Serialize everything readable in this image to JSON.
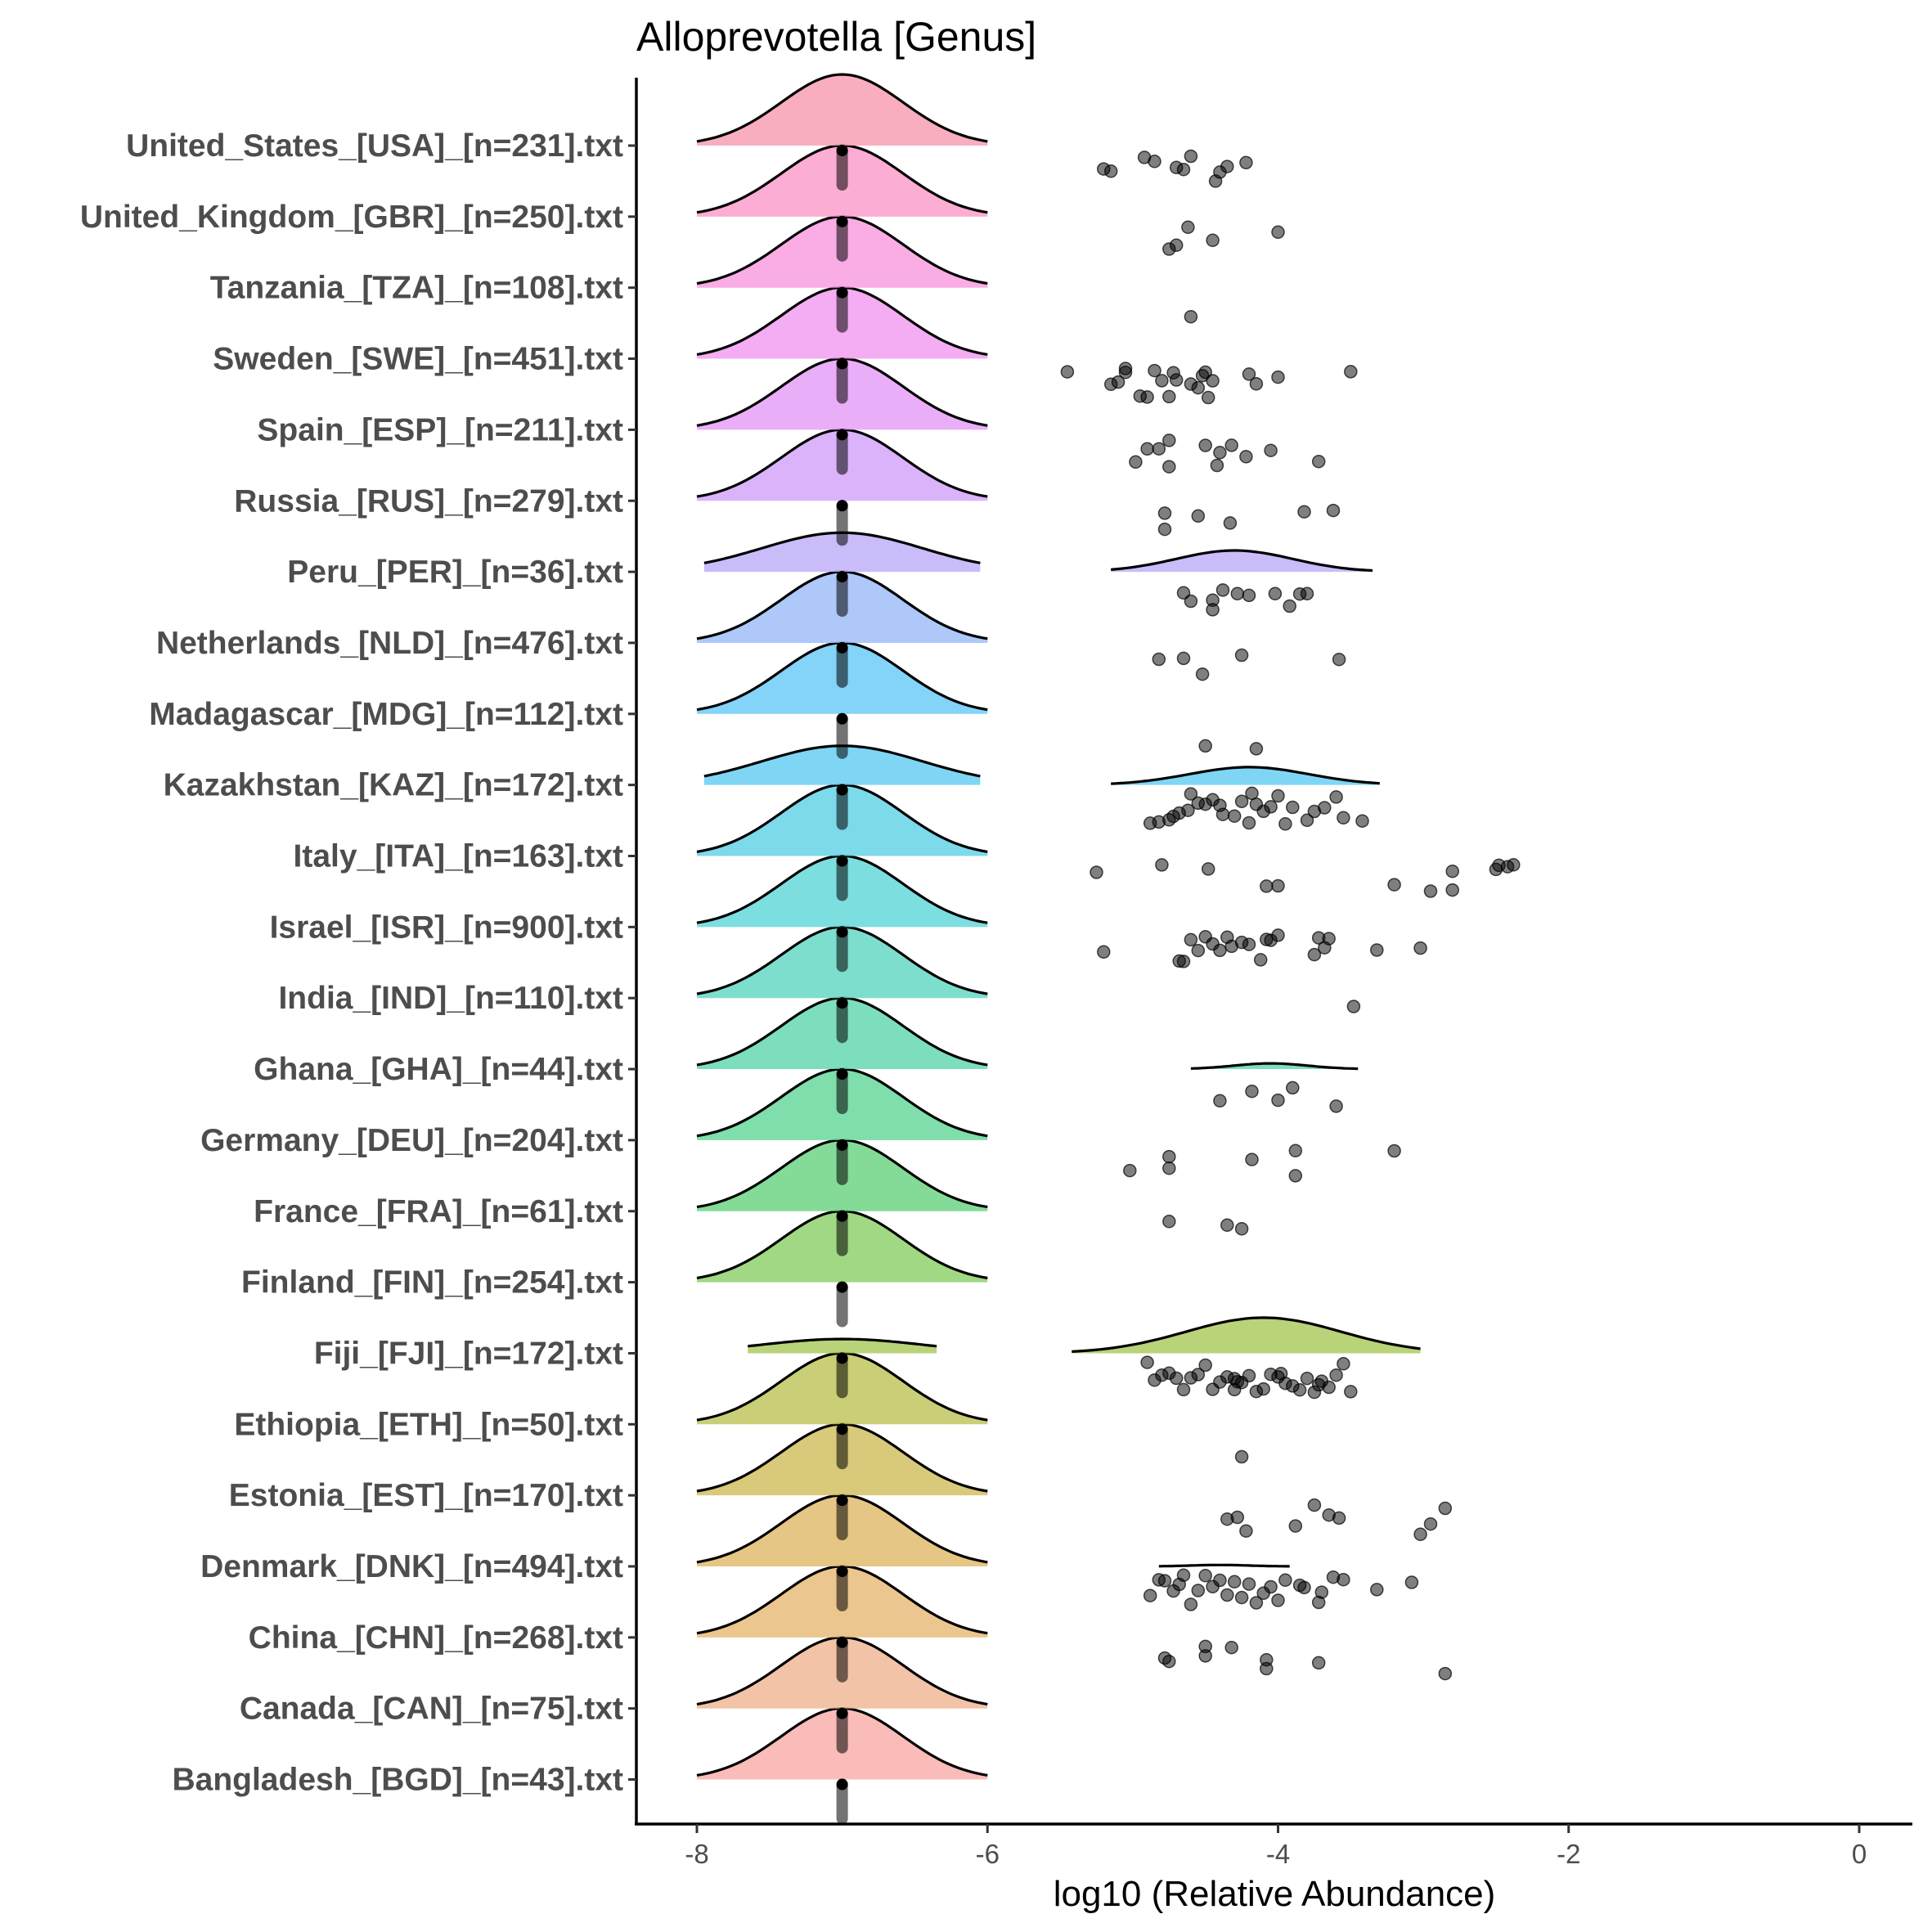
{
  "chart_data": {
    "type": "ridgeline+jitter",
    "title": "Alloprevotella [Genus]",
    "xlabel": "log10 (Relative Abundance)",
    "ylabel": "",
    "xlim": [
      -8.4,
      0.4
    ],
    "xticks": [
      -8,
      -6,
      -4,
      -2,
      0
    ],
    "xtick_labels": [
      "-8",
      "-6",
      "-4",
      "-2",
      "0"
    ],
    "zero_value": -7,
    "grid": false,
    "legend": "none",
    "line_color": "#000000",
    "point_color": "#000000",
    "point_alpha": 0.5,
    "categories": [
      {
        "label": "United_States_[USA]_[n=231].txt",
        "color": "#F8A0B4",
        "zero_ridge": true,
        "ridge": null,
        "points": [
          -5.2,
          -5.15,
          -4.92,
          -4.85,
          -4.7,
          -4.65,
          -4.6,
          -4.43,
          -4.4,
          -4.35,
          -4.22
        ]
      },
      {
        "label": "United_Kingdom_[GBR]_[n=250].txt",
        "color": "#FB9FCB",
        "zero_ridge": true,
        "ridge": null,
        "points": [
          -4.75,
          -4.7,
          -4.62,
          -4.45,
          -4.0
        ]
      },
      {
        "label": "Tanzania_[TZA]_[n=108].txt",
        "color": "#F99EE0",
        "zero_ridge": true,
        "ridge": null,
        "points": [
          -4.6
        ]
      },
      {
        "label": "Sweden_[SWE]_[n=451].txt",
        "color": "#F29DF0",
        "zero_ridge": true,
        "ridge": null,
        "points": [
          -5.45,
          -5.15,
          -5.1,
          -5.05,
          -5.05,
          -4.95,
          -4.9,
          -4.85,
          -4.8,
          -4.75,
          -4.72,
          -4.7,
          -4.6,
          -4.55,
          -4.52,
          -4.5,
          -4.48,
          -4.45,
          -4.2,
          -4.15,
          -4.0,
          -3.5
        ]
      },
      {
        "label": "Spain_[ESP]_[n=211].txt",
        "color": "#E6A0F8",
        "zero_ridge": true,
        "ridge": null,
        "points": [
          -4.98,
          -4.9,
          -4.82,
          -4.75,
          -4.75,
          -4.5,
          -4.42,
          -4.4,
          -4.32,
          -4.22,
          -4.05,
          -3.72
        ]
      },
      {
        "label": "Russia_[RUS]_[n=279].txt",
        "color": "#D5A6FA",
        "zero_ridge": true,
        "ridge": null,
        "points": [
          -4.78,
          -4.78,
          -4.55,
          -4.33,
          -3.82,
          -3.62
        ]
      },
      {
        "label": "Peru_[PER]_[n=36].txt",
        "color": "#C0B0F8",
        "zero_ridge": true,
        "ridge": {
          "from": -5.15,
          "to": -3.35,
          "peak": -4.3,
          "height": 0.3
        },
        "points": [
          -4.65,
          -4.6,
          -4.45,
          -4.45,
          -4.38,
          -4.28,
          -4.2,
          -4.02,
          -3.92,
          -3.85,
          -3.8
        ]
      },
      {
        "label": "Netherlands_[NLD]_[n=476].txt",
        "color": "#9FBEF8",
        "zero_ridge": true,
        "ridge": null,
        "points": [
          -4.82,
          -4.65,
          -4.52,
          -4.25,
          -3.58
        ]
      },
      {
        "label": "Madagascar_[MDG]_[n=112].txt",
        "color": "#6ECBF8",
        "zero_ridge": true,
        "ridge": null,
        "points": [
          -4.5,
          -4.15
        ]
      },
      {
        "label": "Kazakhstan_[KAZ]_[n=172].txt",
        "color": "#68CFF2",
        "zero_ridge": true,
        "ridge": {
          "from": -5.15,
          "to": -3.3,
          "peak": -4.2,
          "height": 0.25
        },
        "points": [
          -4.88,
          -4.82,
          -4.75,
          -4.72,
          -4.68,
          -4.62,
          -4.6,
          -4.55,
          -4.5,
          -4.45,
          -4.4,
          -4.38,
          -4.3,
          -4.25,
          -4.2,
          -4.18,
          -4.15,
          -4.1,
          -4.05,
          -4.0,
          -3.95,
          -3.9,
          -3.8,
          -3.75,
          -3.68,
          -3.6,
          -3.55,
          -3.42
        ]
      },
      {
        "label": "Italy_[ITA]_[n=163].txt",
        "color": "#66D3E6",
        "zero_ridge": true,
        "ridge": null,
        "points": [
          -5.25,
          -4.8,
          -4.48,
          -4.08,
          -4.0,
          -3.2,
          -2.95,
          -2.8,
          -2.8,
          -2.5,
          -2.48,
          -2.42,
          -2.38
        ]
      },
      {
        "label": "Israel_[ISR]_[n=900].txt",
        "color": "#66D8DA",
        "zero_ridge": true,
        "ridge": null,
        "points": [
          -5.2,
          -4.68,
          -4.65,
          -4.6,
          -4.55,
          -4.5,
          -4.45,
          -4.4,
          -4.35,
          -4.32,
          -4.25,
          -4.2,
          -4.12,
          -4.08,
          -4.05,
          -4.0,
          -3.75,
          -3.72,
          -3.68,
          -3.65,
          -3.32,
          -3.02
        ]
      },
      {
        "label": "India_[IND]_[n=110].txt",
        "color": "#66D8C6",
        "zero_ridge": true,
        "ridge": null,
        "points": [
          -3.48
        ]
      },
      {
        "label": "Ghana_[GHA]_[n=44].txt",
        "color": "#66D8B2",
        "zero_ridge": true,
        "ridge": {
          "from": -4.6,
          "to": -3.45,
          "peak": -4.05,
          "height": 0.08
        },
        "points": [
          -4.4,
          -4.18,
          -4.0,
          -3.9,
          -3.6
        ]
      },
      {
        "label": "Germany_[DEU]_[n=204].txt",
        "color": "#68D89C",
        "zero_ridge": true,
        "ridge": null,
        "points": [
          -5.02,
          -4.75,
          -4.75,
          -4.18,
          -3.88,
          -3.88,
          -3.2
        ]
      },
      {
        "label": "France_[FRA]_[n=61].txt",
        "color": "#6FD586",
        "zero_ridge": true,
        "ridge": null,
        "points": [
          -4.75,
          -4.35,
          -4.25
        ]
      },
      {
        "label": "Finland_[FIN]_[n=254].txt",
        "color": "#91D16E",
        "zero_ridge": true,
        "ridge": null,
        "points": []
      },
      {
        "label": "Fiji_[FJI]_[n=172].txt",
        "color": "#ADCB62",
        "zero_ridge": true,
        "ridge": {
          "from": -5.42,
          "to": -3.02,
          "peak": -4.1,
          "height": 0.5
        },
        "points": [
          -4.9,
          -4.85,
          -4.8,
          -4.75,
          -4.7,
          -4.65,
          -4.6,
          -4.55,
          -4.5,
          -4.45,
          -4.4,
          -4.35,
          -4.3,
          -4.25,
          -4.2,
          -4.15,
          -4.1,
          -4.05,
          -4.0,
          -3.95,
          -3.9,
          -3.85,
          -3.8,
          -3.75,
          -3.7,
          -3.65,
          -3.6,
          -3.55,
          -3.5,
          -4.3,
          -4.28,
          -3.98,
          -3.72
        ]
      },
      {
        "label": "Ethiopia_[ETH]_[n=50].txt",
        "color": "#C1C55E",
        "zero_ridge": true,
        "ridge": null,
        "points": [
          -4.25
        ]
      },
      {
        "label": "Estonia_[EST]_[n=170].txt",
        "color": "#D2C064",
        "zero_ridge": true,
        "ridge": null,
        "points": [
          -4.35,
          -4.28,
          -4.22,
          -3.88,
          -3.75,
          -3.65,
          -3.58,
          -3.02,
          -2.95,
          -2.85
        ]
      },
      {
        "label": "Denmark_[DNK]_[n=494].txt",
        "color": "#E0BC6E",
        "zero_ridge": true,
        "ridge": {
          "from": -4.82,
          "to": -3.92,
          "peak": -4.4,
          "height": 0.02
        },
        "points": [
          -4.88,
          -4.82,
          -4.78,
          -4.72,
          -4.68,
          -4.65,
          -4.6,
          -4.55,
          -4.5,
          -4.45,
          -4.4,
          -4.35,
          -4.3,
          -4.25,
          -4.2,
          -4.15,
          -4.1,
          -4.05,
          -4.0,
          -3.95,
          -3.85,
          -3.82,
          -3.72,
          -3.7,
          -3.62,
          -3.55,
          -3.32,
          -3.08
        ]
      },
      {
        "label": "China_[CHN]_[n=268].txt",
        "color": "#E8BC7A",
        "zero_ridge": true,
        "ridge": null,
        "points": [
          -4.78,
          -4.75,
          -4.5,
          -4.5,
          -4.32,
          -4.08,
          -4.08,
          -3.72,
          -2.85
        ]
      },
      {
        "label": "Canada_[CAN]_[n=75].txt",
        "color": "#F0B898",
        "zero_ridge": true,
        "ridge": null,
        "points": []
      },
      {
        "label": "Bangladesh_[BGD]_[n=43].txt",
        "color": "#F8B0AC",
        "zero_ridge": true,
        "ridge": null,
        "points": []
      }
    ]
  }
}
